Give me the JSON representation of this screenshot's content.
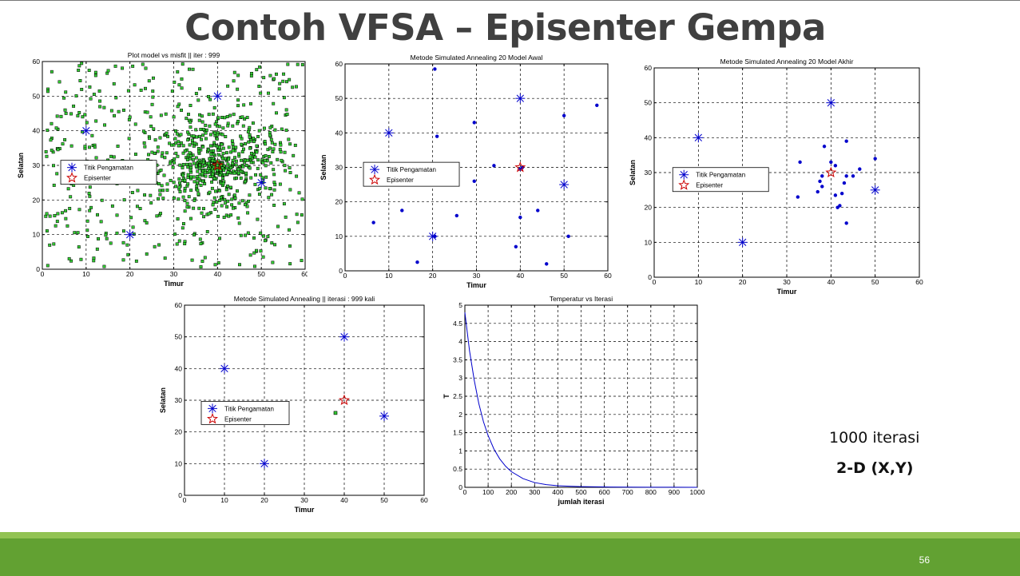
{
  "slide": {
    "title": "Contoh VFSA – Episenter Gempa",
    "note_iterations": "1000 iterasi",
    "note_dimension": "2-D (X,Y)",
    "page_number": "56"
  },
  "colors": {
    "footer": "#62a132",
    "footer_light": "#92c353",
    "station": "#0000cc",
    "epicenter": "#cc0000",
    "models": "#33cc33",
    "curve": "#0000cc"
  },
  "chart_data": [
    {
      "id": "plot1",
      "type": "scatter",
      "title": "Plot model vs misfit || iter : 999",
      "xlabel": "Timur",
      "ylabel": "Selatan",
      "xlim": [
        0,
        60
      ],
      "ylim": [
        0,
        60
      ],
      "xticks": [
        0,
        10,
        20,
        30,
        40,
        50,
        60
      ],
      "yticks": [
        0,
        10,
        20,
        30,
        40,
        50,
        60
      ],
      "xtick_labels": [
        "0",
        "10",
        "20",
        "30",
        "40",
        "50",
        "60"
      ],
      "ytick_labels": [
        "0",
        "10",
        "20",
        "30",
        "40",
        "50",
        "60"
      ],
      "grid": true,
      "legend": {
        "position": "left",
        "entries": [
          "Titik Pengamatan",
          "Episenter"
        ]
      },
      "stations": [
        [
          10,
          40
        ],
        [
          40,
          50
        ],
        [
          20,
          10
        ],
        [
          50,
          25
        ]
      ],
      "epicenter": [
        40,
        30
      ],
      "models": {
        "count": 1000,
        "center": [
          40,
          30
        ],
        "description": "random models over full domain, concentrated near epicenter"
      }
    },
    {
      "id": "plot2",
      "type": "scatter",
      "title": "Metode Simulated Annealing 20 Model Awal",
      "xlabel": "Timur",
      "ylabel": "Selatan",
      "xlim": [
        0,
        60
      ],
      "ylim": [
        0,
        60
      ],
      "xticks": [
        0,
        10,
        20,
        30,
        40,
        50,
        60
      ],
      "yticks": [
        0,
        10,
        20,
        30,
        40,
        50,
        60
      ],
      "xtick_labels": [
        "0",
        "10",
        "20",
        "30",
        "40",
        "50",
        "60"
      ],
      "ytick_labels": [
        "0",
        "10",
        "20",
        "30",
        "40",
        "50",
        "60"
      ],
      "grid": true,
      "legend": {
        "position": "left",
        "entries": [
          "Titik Pengamatan",
          "Episenter"
        ]
      },
      "stations": [
        [
          10,
          40
        ],
        [
          40,
          50
        ],
        [
          20,
          10
        ],
        [
          50,
          25
        ]
      ],
      "epicenter": [
        40,
        30
      ],
      "models": [
        [
          20.5,
          58.5
        ],
        [
          21,
          39
        ],
        [
          29.5,
          43
        ],
        [
          50,
          45
        ],
        [
          57.5,
          48
        ],
        [
          18.5,
          29.5
        ],
        [
          29.5,
          26
        ],
        [
          34,
          30.5
        ],
        [
          40.5,
          30
        ],
        [
          6.5,
          14
        ],
        [
          13,
          17.5
        ],
        [
          25.5,
          16
        ],
        [
          44,
          17.5
        ],
        [
          40,
          15.5
        ],
        [
          51,
          10
        ],
        [
          39,
          7
        ],
        [
          16.5,
          2.5
        ],
        [
          46,
          2
        ],
        [
          20.5,
          10
        ],
        [
          40,
          29.5
        ]
      ]
    },
    {
      "id": "plot3",
      "type": "scatter",
      "title": "Metode Simulated Annealing 20 Model Akhir",
      "xlabel": "Timur",
      "ylabel": "Selatan",
      "xlim": [
        0,
        60
      ],
      "ylim": [
        0,
        60
      ],
      "xticks": [
        0,
        10,
        20,
        30,
        40,
        50,
        60
      ],
      "yticks": [
        0,
        10,
        20,
        30,
        40,
        50,
        60
      ],
      "xtick_labels": [
        "0",
        "10",
        "20",
        "30",
        "40",
        "50",
        "60"
      ],
      "ytick_labels": [
        "0",
        "10",
        "20",
        "30",
        "40",
        "50",
        "60"
      ],
      "grid": true,
      "legend": {
        "position": "left",
        "entries": [
          "Titik Pengamatan",
          "Episenter"
        ]
      },
      "stations": [
        [
          10,
          40
        ],
        [
          40,
          50
        ],
        [
          20,
          10
        ],
        [
          50,
          25
        ]
      ],
      "epicenter": [
        40,
        30
      ],
      "models": [
        [
          33,
          33
        ],
        [
          38.5,
          37.5
        ],
        [
          43.5,
          39
        ],
        [
          50,
          34
        ],
        [
          38,
          29
        ],
        [
          37.5,
          27.5
        ],
        [
          38,
          26
        ],
        [
          37,
          24.5
        ],
        [
          32.5,
          23
        ],
        [
          40,
          33
        ],
        [
          41,
          32
        ],
        [
          43.5,
          29
        ],
        [
          45,
          29
        ],
        [
          46.5,
          31
        ],
        [
          43,
          27
        ],
        [
          42.5,
          24
        ],
        [
          41,
          23.5
        ],
        [
          42,
          20.5
        ],
        [
          41.5,
          20
        ],
        [
          43.5,
          15.5
        ]
      ]
    },
    {
      "id": "plot4",
      "type": "scatter",
      "title": "Metode Simulated Annealing || iterasi : 999 kali",
      "xlabel": "Timur",
      "ylabel": "Selatan",
      "xlim": [
        0,
        60
      ],
      "ylim": [
        0,
        60
      ],
      "xticks": [
        0,
        10,
        20,
        30,
        40,
        50,
        60
      ],
      "yticks": [
        0,
        10,
        20,
        30,
        40,
        50,
        60
      ],
      "xtick_labels": [
        "0",
        "10",
        "20",
        "30",
        "40",
        "50",
        "60"
      ],
      "ytick_labels": [
        "0",
        "10",
        "20",
        "30",
        "40",
        "50",
        "60"
      ],
      "grid": true,
      "legend": {
        "position": "left",
        "entries": [
          "Titik Pengamatan",
          "Episenter"
        ]
      },
      "stations": [
        [
          10,
          40
        ],
        [
          40,
          50
        ],
        [
          20,
          10
        ],
        [
          50,
          25
        ]
      ],
      "epicenter": [
        40,
        30
      ],
      "models": [
        [
          37.8,
          26
        ]
      ]
    },
    {
      "id": "plot5",
      "type": "line",
      "title": "Temperatur vs Iterasi",
      "xlabel": "jumlah iterasi",
      "ylabel": "T",
      "xlim": [
        0,
        1000
      ],
      "ylim": [
        0,
        5
      ],
      "xticks": [
        0,
        100,
        200,
        300,
        400,
        500,
        600,
        700,
        800,
        900,
        1000
      ],
      "yticks": [
        0,
        0.5,
        1,
        1.5,
        2,
        2.5,
        3,
        3.5,
        4,
        4.5,
        5
      ],
      "xtick_labels": [
        "0",
        "100",
        "200",
        "300",
        "400",
        "500",
        "600",
        "700",
        "800",
        "900",
        "1000"
      ],
      "ytick_labels": [
        "0",
        "0.5",
        "1",
        "1.5",
        "2",
        "2.5",
        "3",
        "3.5",
        "4",
        "4.5",
        "5"
      ],
      "grid": true,
      "series": [
        {
          "x": [
            0,
            20,
            40,
            60,
            80,
            100,
            125,
            150,
            175,
            200,
            250,
            300,
            350,
            400,
            450,
            500,
            600,
            700,
            800,
            900,
            1000
          ],
          "y": [
            4.8,
            3.75,
            2.95,
            2.3,
            1.8,
            1.42,
            1.05,
            0.78,
            0.58,
            0.43,
            0.24,
            0.13,
            0.075,
            0.045,
            0.03,
            0.02,
            0.01,
            0.005,
            0.003,
            0.002,
            0.001
          ]
        }
      ]
    }
  ]
}
